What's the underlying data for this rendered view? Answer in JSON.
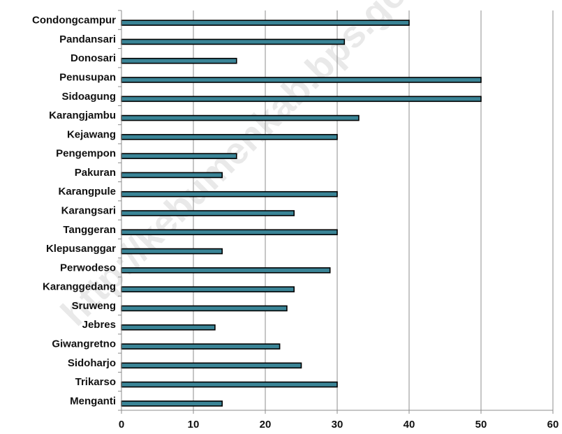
{
  "watermark": "http://kebumenkab.bps.go.id",
  "chart_data": {
    "type": "bar",
    "orientation": "horizontal",
    "categories": [
      "Condongcampur",
      "Pandansari",
      "Donosari",
      "Penusupan",
      "Sidoagung",
      "Karangjambu",
      "Kejawang",
      "Pengempon",
      "Pakuran",
      "Karangpule",
      "Karangsari",
      "Tanggeran",
      "Klepusanggar",
      "Perwodeso",
      "Karanggedang",
      "Sruweng",
      "Jebres",
      "Giwangretno",
      "Sidoharjo",
      "Trikarso",
      "Menganti"
    ],
    "values": [
      40,
      31,
      16,
      50,
      50,
      33,
      30,
      16,
      14,
      30,
      24,
      30,
      14,
      29,
      24,
      23,
      13,
      22,
      25,
      30,
      14
    ],
    "xlim": [
      0,
      60
    ],
    "xticks": [
      0,
      10,
      20,
      30,
      40,
      50,
      60
    ],
    "grid": "vertical",
    "bar_color": "#3a8496",
    "title": "",
    "xlabel": "",
    "ylabel": ""
  }
}
